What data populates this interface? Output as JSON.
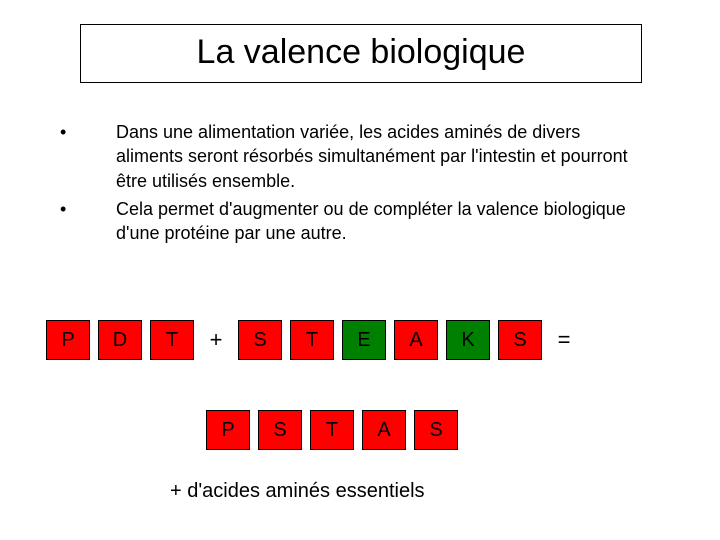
{
  "title": "La valence biologique",
  "bullets": [
    "Dans une alimentation variée, les acides aminés de divers aliments seront résorbés simultanément par l'intestin et pourront être utilisés ensemble.",
    "Cela permet d'augmenter ou de compléter la valence biologique d'une protéine par une autre."
  ],
  "colors": {
    "red": "#ff0000",
    "green": "#008000",
    "black": "#000000",
    "white": "#ffffff"
  },
  "row1": {
    "groupA": [
      {
        "text": "P",
        "fillKey": "red"
      },
      {
        "text": "D",
        "fillKey": "red"
      },
      {
        "text": "T",
        "fillKey": "red"
      }
    ],
    "op1": "+",
    "groupB": [
      {
        "text": "S",
        "fillKey": "red"
      },
      {
        "text": "T",
        "fillKey": "red"
      },
      {
        "text": "E",
        "fillKey": "green"
      },
      {
        "text": "A",
        "fillKey": "red"
      },
      {
        "text": "K",
        "fillKey": "green"
      },
      {
        "text": "S",
        "fillKey": "red"
      }
    ],
    "op2": "="
  },
  "row2": [
    {
      "text": "P",
      "fillKey": "red"
    },
    {
      "text": "S",
      "fillKey": "red"
    },
    {
      "text": "T",
      "fillKey": "red"
    },
    {
      "text": "A",
      "fillKey": "red"
    },
    {
      "text": "S",
      "fillKey": "red"
    }
  ],
  "caption": "+ d'acides aminés essentiels"
}
